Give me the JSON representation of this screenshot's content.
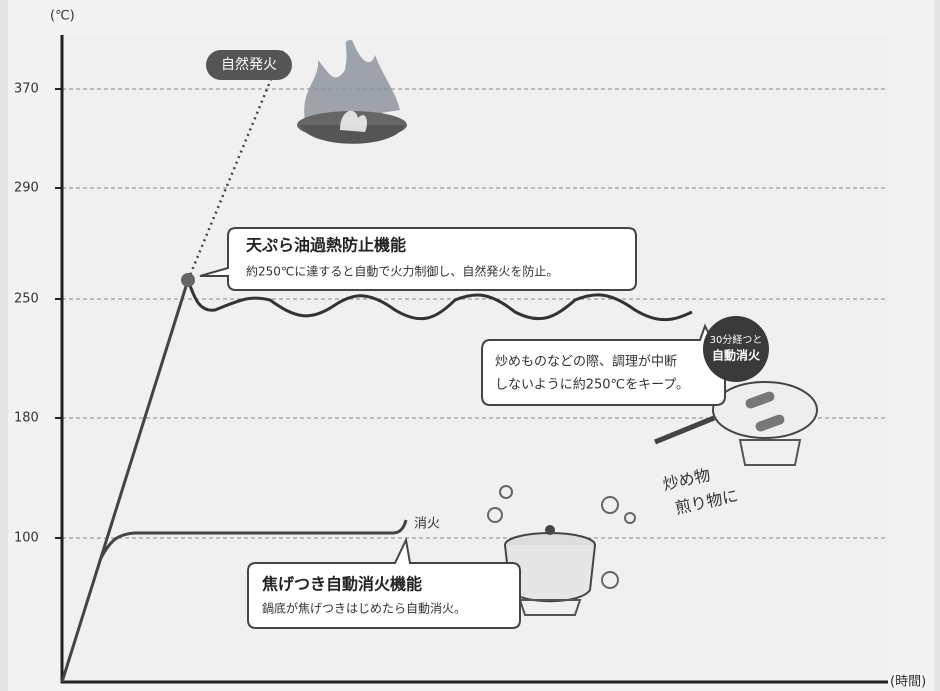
{
  "axis": {
    "y_unit": "(℃)",
    "x_unit": "(時間)",
    "yticks": [
      100,
      180,
      250,
      290,
      370
    ]
  },
  "callouts": {
    "ignition": "自然発火",
    "overheat": {
      "title": "天ぷら油過熱防止機能",
      "text": "約250℃に達すると自動で火力制御し、自然発火を防止。"
    },
    "keep": {
      "lines": [
        "炒めものなどの際、調理が中断",
        "しないように約250℃をキープ。"
      ],
      "badge": [
        "30分経つと",
        "自動消火"
      ]
    },
    "extinguish": "消火",
    "scorch": {
      "title": "焦げつき自動消火機能",
      "text": "鍋底が焦げつきはじめたら自動消火。"
    },
    "handwritten": [
      "炒め物",
      "煎り物に"
    ]
  }
}
